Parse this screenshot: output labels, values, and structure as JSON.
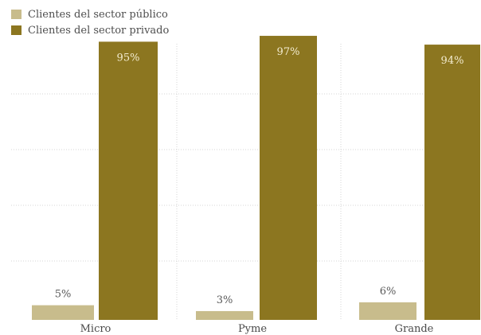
{
  "chart_data": {
    "type": "bar",
    "title": "",
    "xlabel": "",
    "ylabel": "",
    "ylim": [
      0,
      100
    ],
    "grid": true,
    "legend_position": "top-left",
    "categories": [
      "Micro",
      "Pyme",
      "Grande"
    ],
    "series": [
      {
        "name": "Clientes del sector público",
        "values": [
          5,
          3,
          6
        ],
        "labels": [
          "5%",
          "3%",
          "6%"
        ],
        "color": "#c8bc8c"
      },
      {
        "name": "Clientes del sector privado",
        "values": [
          95,
          97,
          94
        ],
        "labels": [
          "95%",
          "97%",
          "94%"
        ],
        "color": "#8c7620"
      }
    ]
  },
  "colors": {
    "gridline": "#d4d4d4",
    "label_outside": "#5a5a5a",
    "label_inside": "#f3ecd0",
    "axis_text": "#4a4a4a"
  }
}
